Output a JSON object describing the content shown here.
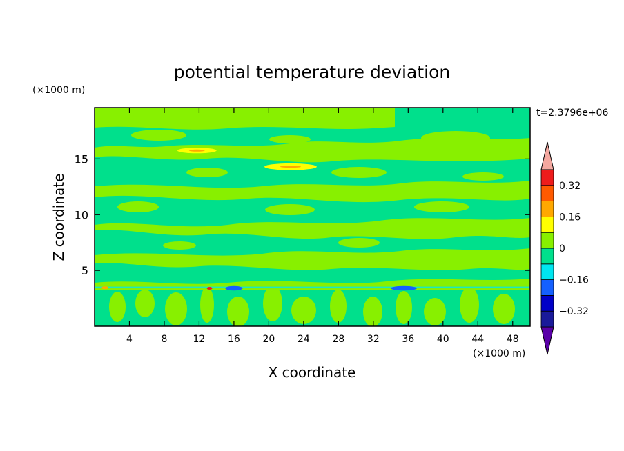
{
  "chart_data": {
    "type": "heatmap",
    "title": "potential temperature deviation",
    "xlabel": "X coordinate",
    "ylabel": "Z coordinate",
    "x_unit": "(×1000 m)",
    "y_unit": "(×1000 m)",
    "time_label": "t=2.3796e+06",
    "xlim": [
      0,
      50
    ],
    "ylim": [
      0,
      19.6
    ],
    "x_ticks": [
      4,
      8,
      12,
      16,
      20,
      24,
      28,
      32,
      36,
      40,
      44,
      48
    ],
    "y_ticks": [
      5,
      10,
      15
    ],
    "colorbar": {
      "levels": [
        -0.4,
        -0.32,
        -0.24,
        -0.16,
        -0.08,
        0,
        0.08,
        0.16,
        0.24,
        0.32,
        0.4
      ],
      "colors": [
        "#5a00a8",
        "#1a1a9a",
        "#0000c8",
        "#1460ff",
        "#00e6f0",
        "#00e08c",
        "#88f000",
        "#ffff00",
        "#ffa800",
        "#ff5a00",
        "#ee1c1c",
        "#f4a8a0"
      ],
      "labels": [
        "0.32",
        "0.16",
        "0",
        "−0.16",
        "−0.32"
      ],
      "label_values": [
        0.32,
        0.16,
        0,
        -0.16,
        -0.32
      ],
      "extend": "both"
    },
    "features": [
      {
        "description": "warm yellow/orange streak",
        "x": [
          9.5,
          14
        ],
        "z": [
          15.5,
          16
        ],
        "value": 0.2
      },
      {
        "description": "warm yellow/orange streak",
        "x": [
          19.5,
          25.5
        ],
        "z": [
          14,
          14.6
        ],
        "value": 0.2
      },
      {
        "description": "cold blue spots along inversion",
        "x": [
          15,
          17
        ],
        "z": [
          3.2,
          3.6
        ],
        "value": -0.16
      },
      {
        "description": "cold blue spots along inversion",
        "x": [
          34,
          37
        ],
        "z": [
          3.2,
          3.6
        ],
        "value": -0.16
      }
    ]
  }
}
